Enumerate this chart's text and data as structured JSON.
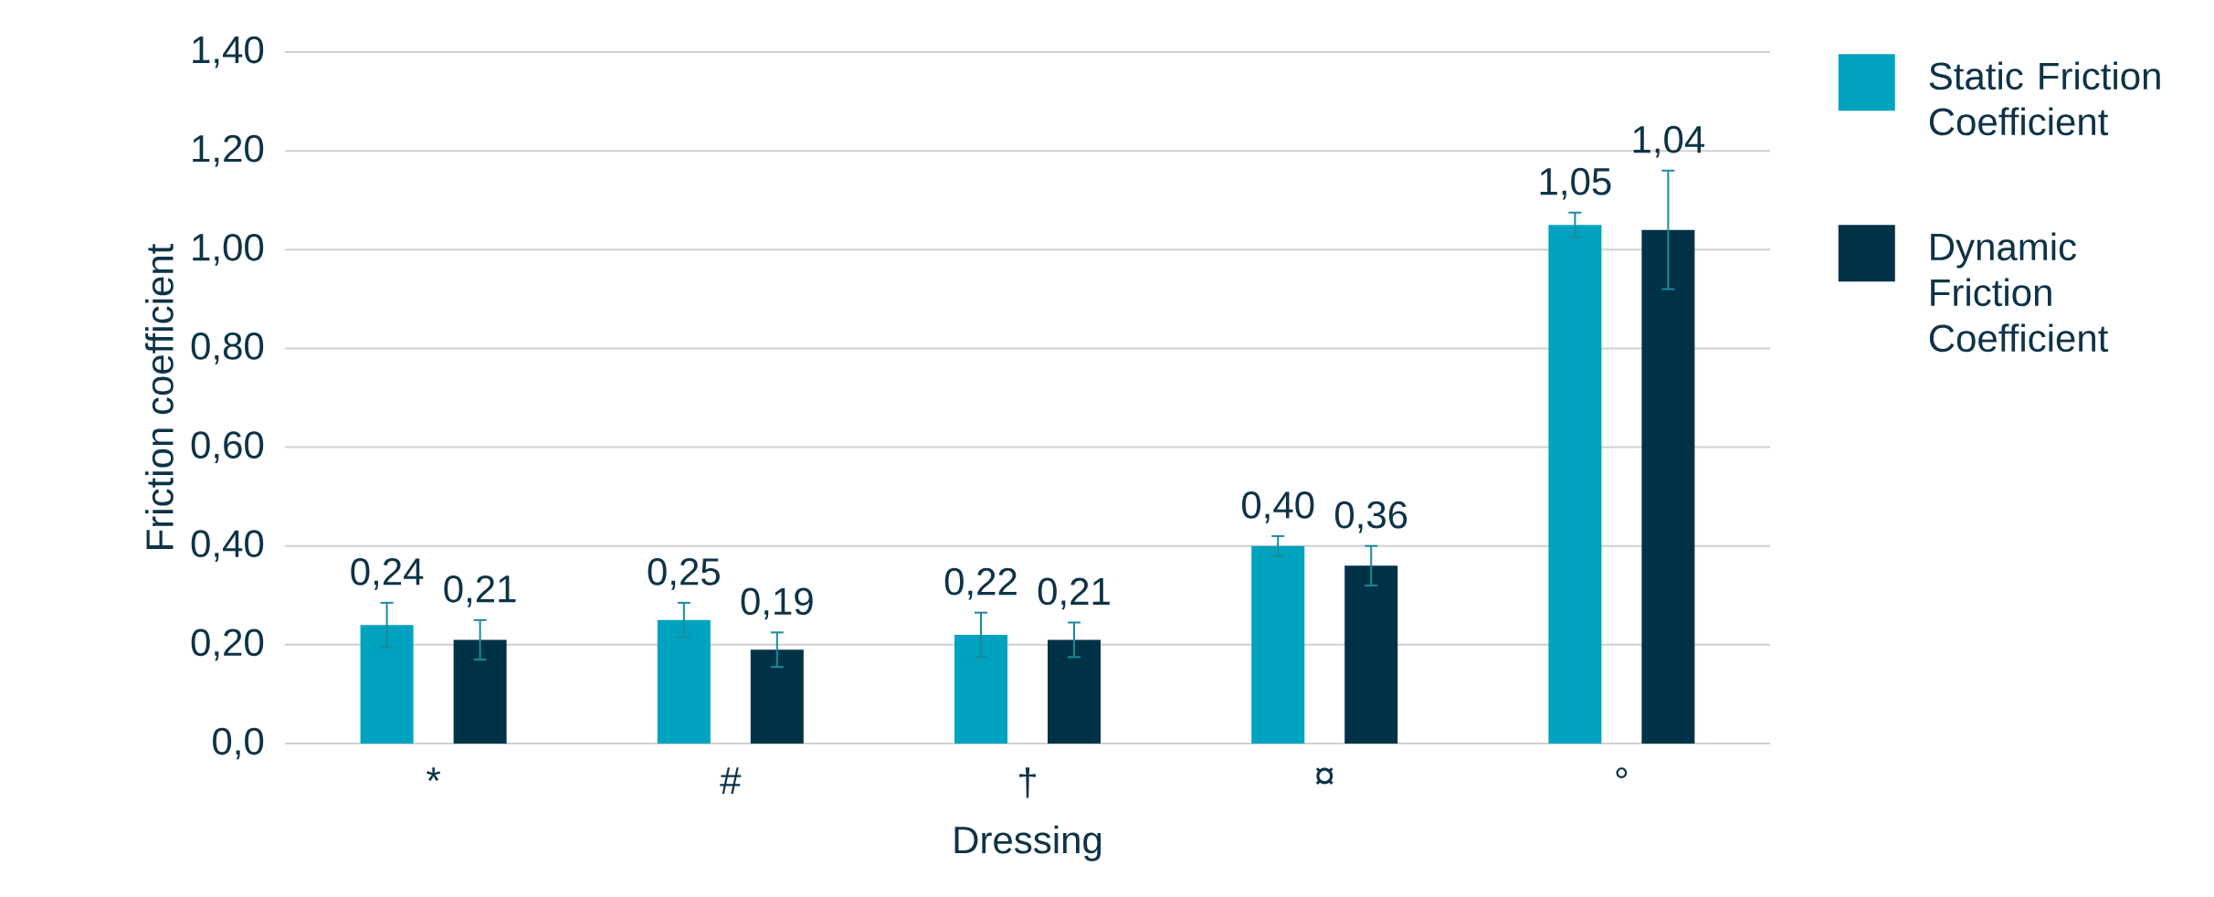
{
  "chart_data": {
    "type": "bar",
    "xlabel": "Dressing",
    "ylabel": "Friction coefficient",
    "categories": [
      "*",
      "#",
      "†",
      "¤",
      "°"
    ],
    "series": [
      {
        "name": "Static Friction Coefficient",
        "color": "#00a3bf",
        "values": [
          0.24,
          0.25,
          0.22,
          0.4,
          1.05
        ],
        "errors": [
          0.045,
          0.035,
          0.045,
          0.02,
          0.025
        ],
        "value_labels": [
          "0,24",
          "0,25",
          "0,22",
          "0,40",
          "1,05"
        ]
      },
      {
        "name": "Dynamic Friction Coefficient",
        "color": "#003247",
        "values": [
          0.21,
          0.19,
          0.21,
          0.36,
          1.04
        ],
        "errors": [
          0.04,
          0.035,
          0.035,
          0.04,
          0.12
        ],
        "value_labels": [
          "0,21",
          "0,19",
          "0,21",
          "0,36",
          "1,04"
        ]
      }
    ],
    "ylim": [
      0,
      1.4
    ],
    "yticks": [
      {
        "value": 0,
        "label": "0,0"
      },
      {
        "value": 0.2,
        "label": "0,20"
      },
      {
        "value": 0.4,
        "label": "0,40"
      },
      {
        "value": 0.6,
        "label": "0,60"
      },
      {
        "value": 0.8,
        "label": "0,80"
      },
      {
        "value": 1.0,
        "label": "1,00"
      },
      {
        "value": 1.2,
        "label": "1,20"
      },
      {
        "value": 1.4,
        "label": "1,40"
      }
    ],
    "grid": "y",
    "legend": "right"
  }
}
